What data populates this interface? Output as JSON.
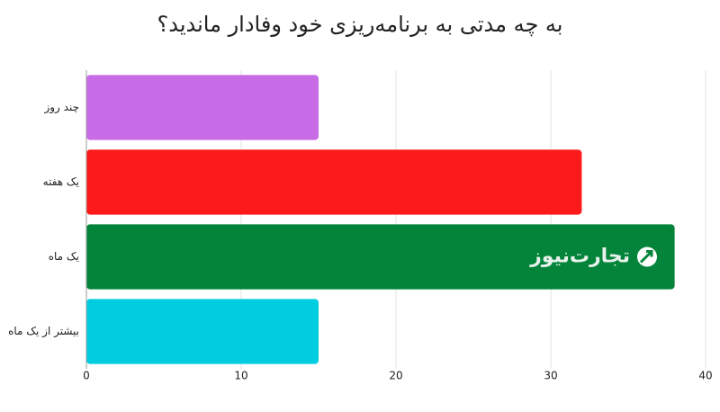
{
  "chart_data": {
    "type": "bar",
    "orientation": "horizontal",
    "title": "به چه مدتی به برنامه‌ریزی خود وفادار ماندید؟",
    "categories": [
      "چند روز",
      "یک هفته",
      "یک ماه",
      "بیشتر از یک ماه"
    ],
    "values": [
      15,
      32,
      38,
      15
    ],
    "colors": [
      "#c86be6",
      "#fd1a1a",
      "#03843a",
      "#00cde0"
    ],
    "xlim": [
      0,
      40
    ],
    "xticks": [
      0,
      10,
      20,
      30,
      40
    ],
    "grid": true,
    "watermark": "تجارت‌نیوز"
  }
}
